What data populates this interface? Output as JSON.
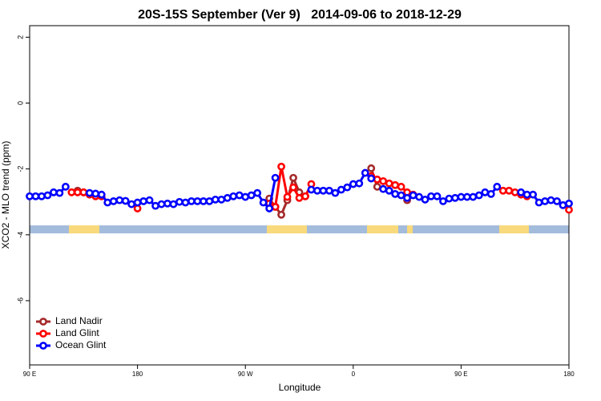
{
  "chart_data": {
    "type": "line",
    "title": "20S-15S September (Ver 9)   2014-09-06 to 2018-12-29",
    "x_label": "Longitude",
    "y_label": "XCO2 - MLO trend (ppm)",
    "x": [
      90,
      95,
      100,
      105,
      110,
      115,
      120,
      125,
      130,
      135,
      140,
      145,
      150,
      155,
      160,
      165,
      170,
      175,
      180,
      185,
      190,
      195,
      200,
      205,
      210,
      215,
      220,
      225,
      230,
      235,
      240,
      245,
      250,
      255,
      260,
      265,
      270,
      275,
      280,
      285,
      290,
      295,
      300,
      305,
      310,
      315,
      320,
      325,
      330,
      335,
      340,
      345,
      350,
      355,
      360,
      365,
      370,
      375,
      380,
      385,
      390,
      395,
      400,
      405,
      410,
      415,
      420,
      425,
      430,
      435,
      440,
      445,
      450,
      455,
      460,
      465,
      470,
      475,
      480,
      485,
      490,
      495,
      500,
      505,
      510,
      515,
      520,
      525,
      530,
      535,
      540
    ],
    "xlim": [
      90,
      540
    ],
    "xticks": [
      {
        "value": 90,
        "label": "90 E"
      },
      180,
      {
        "value": 270,
        "label": "90 W"
      },
      {
        "value": 360,
        "label": "0"
      },
      {
        "value": 450,
        "label": "90 E"
      },
      {
        "value": 540,
        "label": "180"
      }
    ],
    "ylim": [
      -7.95,
      2.35
    ],
    "yticks": [
      -6,
      -4,
      -2,
      0,
      2
    ],
    "grid": false,
    "legend": "lower left",
    "series": [
      {
        "name": "Land Nadir",
        "color": "#a52a2a",
        "values": [
          null,
          null,
          null,
          null,
          null,
          null,
          null,
          null,
          -2.66,
          -2.71,
          null,
          null,
          null,
          null,
          null,
          null,
          null,
          null,
          null,
          null,
          null,
          null,
          null,
          null,
          null,
          null,
          null,
          null,
          null,
          null,
          null,
          null,
          null,
          null,
          null,
          null,
          null,
          null,
          null,
          null,
          -2.9,
          -3.15,
          -3.39,
          -2.95,
          -2.27,
          -2.71,
          -2.83,
          null,
          null,
          null,
          null,
          null,
          null,
          null,
          null,
          null,
          null,
          -1.98,
          -2.54,
          null,
          null,
          null,
          null,
          -2.95,
          null,
          null,
          null,
          null,
          null,
          null,
          null,
          null,
          null,
          null,
          null,
          null,
          null,
          null,
          null,
          null,
          null,
          null,
          null,
          null,
          null,
          null,
          null,
          null,
          null,
          null,
          null
        ]
      },
      {
        "name": "Land Glint",
        "color": "#ff0000",
        "values": [
          null,
          null,
          null,
          null,
          null,
          null,
          null,
          -2.71,
          -2.71,
          -2.71,
          -2.78,
          -2.83,
          -2.83,
          null,
          null,
          null,
          null,
          null,
          -3.2,
          null,
          null,
          null,
          null,
          null,
          null,
          null,
          null,
          null,
          null,
          null,
          null,
          null,
          null,
          null,
          null,
          null,
          null,
          null,
          null,
          null,
          -3.05,
          -3.15,
          -1.93,
          -2.85,
          -2.56,
          -2.88,
          -2.83,
          -2.46,
          null,
          null,
          null,
          null,
          null,
          null,
          null,
          null,
          null,
          -2.22,
          -2.32,
          -2.37,
          -2.44,
          -2.49,
          -2.54,
          -2.71,
          -2.78,
          null,
          null,
          null,
          null,
          null,
          null,
          null,
          null,
          null,
          null,
          null,
          null,
          null,
          null,
          -2.66,
          -2.66,
          -2.71,
          -2.78,
          -2.83,
          null,
          null,
          null,
          null,
          null,
          null,
          -3.24
        ]
      },
      {
        "name": "Ocean Glint",
        "color": "#0000ff",
        "values": [
          -2.83,
          -2.83,
          -2.83,
          -2.8,
          -2.71,
          -2.73,
          -2.54,
          null,
          null,
          null,
          -2.73,
          -2.75,
          -2.78,
          -3.02,
          -2.98,
          -2.95,
          -2.97,
          -3.07,
          -3.02,
          -2.98,
          -2.95,
          -3.12,
          -3.07,
          -3.05,
          -3.07,
          -3.0,
          -3.02,
          -2.98,
          -2.98,
          -2.98,
          -2.98,
          -2.93,
          -2.93,
          -2.88,
          -2.83,
          -2.8,
          -2.85,
          -2.8,
          -2.73,
          -3.02,
          -3.2,
          -2.27,
          null,
          null,
          null,
          null,
          null,
          -2.63,
          -2.66,
          -2.66,
          -2.66,
          -2.73,
          -2.63,
          -2.56,
          -2.46,
          -2.44,
          -2.12,
          -2.29,
          null,
          -2.61,
          -2.66,
          -2.76,
          -2.8,
          -2.88,
          -2.8,
          -2.85,
          -2.93,
          -2.83,
          -2.83,
          -2.98,
          -2.9,
          -2.88,
          -2.85,
          -2.85,
          -2.85,
          -2.8,
          -2.71,
          -2.76,
          -2.54,
          null,
          null,
          null,
          -2.71,
          -2.78,
          -2.78,
          -3.02,
          -2.98,
          -2.95,
          -2.98,
          -3.1,
          -3.05
        ]
      }
    ]
  }
}
